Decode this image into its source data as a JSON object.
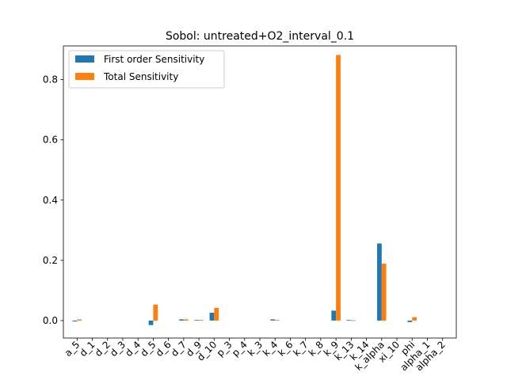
{
  "chart_data": {
    "type": "bar",
    "title": "Sobol: untreated+O2_interval_0.1",
    "xlabel": "",
    "ylabel": "",
    "ylim": [
      -0.058,
      0.912
    ],
    "yticks": [
      0.0,
      0.2,
      0.4,
      0.6,
      0.8
    ],
    "ytick_labels": [
      "0.0",
      "0.2",
      "0.4",
      "0.6",
      "0.8"
    ],
    "grid": false,
    "legend_position": "top-left",
    "categories": [
      "a_5",
      "d_1",
      "d_2",
      "d_3",
      "d_4",
      "d_5",
      "d_6",
      "d_7",
      "d_9",
      "d_10",
      "p_3",
      "p_4",
      "k_3",
      "k_4",
      "k_6",
      "k_7",
      "k_8",
      "k_9",
      "k_13",
      "k_14",
      "k_alpha",
      "xi_10",
      "phi",
      "alpha_1",
      "alpha_2"
    ],
    "series": [
      {
        "name": "First order Sensitivity",
        "color": "#1f77b4",
        "values": [
          -0.003,
          0,
          0,
          0,
          0,
          -0.015,
          0,
          0.004,
          0.002,
          0.026,
          0,
          0,
          0,
          0.004,
          0,
          0,
          0,
          0.033,
          0.002,
          0,
          0.256,
          0,
          -0.005,
          0,
          0
        ]
      },
      {
        "name": "Total Sensitivity",
        "color": "#ff7f0e",
        "values": [
          0.004,
          0,
          0,
          0,
          0,
          0.053,
          0,
          0.004,
          0.002,
          0.042,
          0,
          0,
          0,
          0.002,
          0,
          0,
          0,
          0.882,
          0.001,
          0,
          0.189,
          0,
          0.011,
          0,
          0
        ]
      }
    ]
  }
}
